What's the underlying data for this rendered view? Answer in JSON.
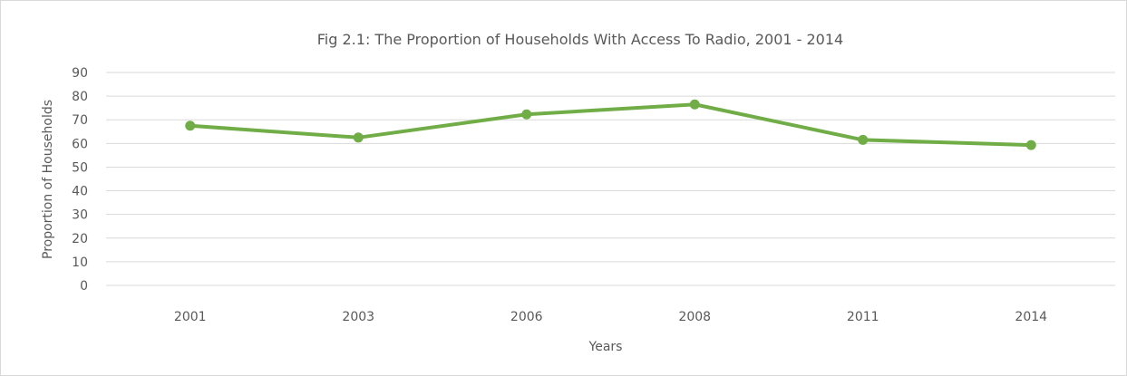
{
  "chart_data": {
    "type": "line",
    "title": "Fig 2.1: The Proportion of Households With Access To Radio, 2001 - 2014",
    "xlabel": "Years",
    "ylabel": "Proportion of Households",
    "categories": [
      "2001",
      "2003",
      "2006",
      "2008",
      "2011",
      "2014"
    ],
    "series": [
      {
        "values": [
          67.5,
          62.5,
          72.3,
          76.5,
          61.5,
          59.3
        ],
        "color": "#70AD47"
      }
    ],
    "ylim": [
      0,
      90
    ],
    "yticks": [
      0,
      10,
      20,
      30,
      40,
      50,
      60,
      70,
      80,
      90
    ],
    "grid": true,
    "legend": "none",
    "colors": {
      "gridline": "#D9D9D9",
      "text": "#595959",
      "border": "#D9D9D9"
    }
  }
}
